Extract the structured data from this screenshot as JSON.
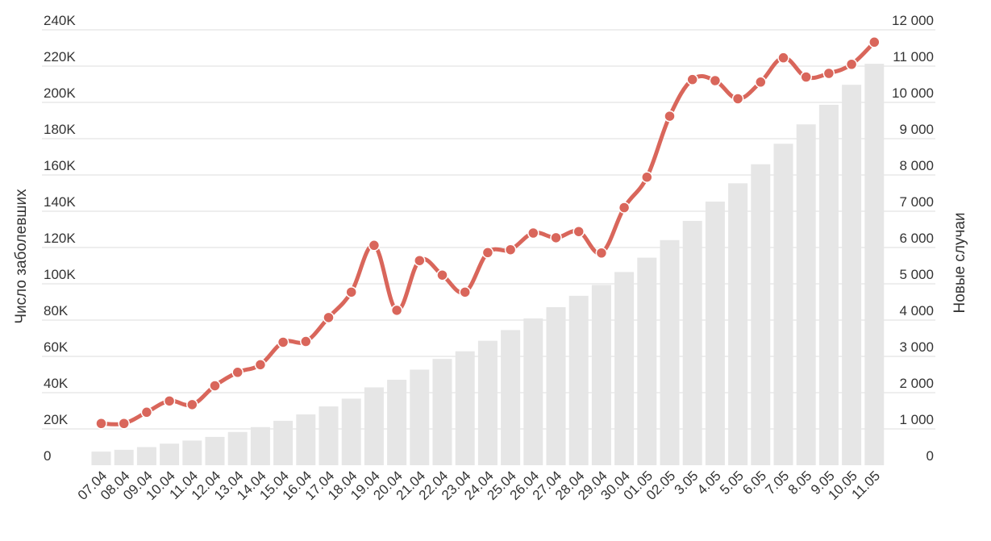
{
  "chart_data": {
    "type": "bar",
    "categories": [
      "07.04",
      "08.04",
      "09.04",
      "10.04",
      "11.04",
      "12.04",
      "13.04",
      "14.04",
      "15.04",
      "16.04",
      "17.04",
      "18.04",
      "19.04",
      "20.04",
      "21.04",
      "22.04",
      "23.04",
      "24.04",
      "25.04",
      "26.04",
      "27.04",
      "28.04",
      "29.04",
      "30.04",
      "01.05",
      "02.05",
      "3.05",
      "4.05",
      "5.05",
      "6.05",
      "7.05",
      "8.05",
      "9.05",
      "10.05",
      "11.05"
    ],
    "series": [
      {
        "type": "bar",
        "axis": "left",
        "color": "#e6e6e6",
        "values": [
          7500,
          8500,
          10000,
          11900,
          13600,
          15600,
          18300,
          21000,
          24500,
          28000,
          32400,
          36700,
          42900,
          47100,
          52700,
          58600,
          62800,
          68600,
          74500,
          80900,
          87100,
          93400,
          99400,
          106500,
          114400,
          124100,
          134700,
          145300,
          155400,
          165900,
          177200,
          187900,
          198700,
          209700,
          221300
        ]
      },
      {
        "type": "line",
        "axis": "right",
        "color": "#d9665b",
        "values": [
          1150,
          1150,
          1460,
          1770,
          1670,
          2190,
          2560,
          2770,
          3390,
          3410,
          4070,
          4770,
          6060,
          4270,
          5640,
          5240,
          4770,
          5860,
          5940,
          6400,
          6270,
          6440,
          5850,
          7100,
          7940,
          9620,
          10630,
          10600,
          10100,
          10560,
          11230,
          10700,
          10800,
          11050,
          11660
        ]
      }
    ],
    "ylabel": "Число заболевших",
    "y2label": "Новые случаи",
    "ylim": [
      0,
      240000
    ],
    "y2lim": [
      0,
      12000
    ],
    "yticks": [
      "0",
      "20K",
      "40K",
      "60K",
      "80K",
      "100K",
      "120K",
      "140K",
      "160K",
      "180K",
      "200K",
      "220K",
      "240K"
    ],
    "y2ticks": [
      "0",
      "1 000",
      "2 000",
      "3 000",
      "4 000",
      "5 000",
      "6 000",
      "7 000",
      "8 000",
      "9 000",
      "10 000",
      "11 000",
      "12 000"
    ],
    "grid": true
  }
}
